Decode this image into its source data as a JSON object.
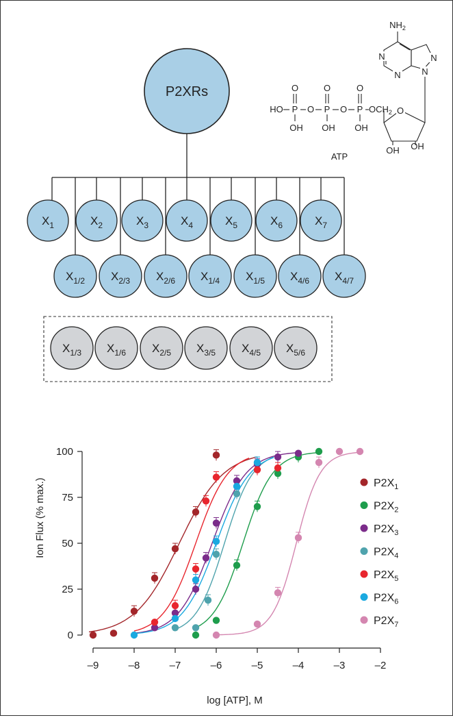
{
  "diagram": {
    "root_label": "P2XRs",
    "homomeric": [
      {
        "base": "X",
        "sub": "1"
      },
      {
        "base": "X",
        "sub": "2"
      },
      {
        "base": "X",
        "sub": "3"
      },
      {
        "base": "X",
        "sub": "4"
      },
      {
        "base": "X",
        "sub": "5"
      },
      {
        "base": "X",
        "sub": "6"
      },
      {
        "base": "X",
        "sub": "7"
      }
    ],
    "heteromeric": [
      {
        "base": "X",
        "sub": "1/2"
      },
      {
        "base": "X",
        "sub": "2/3"
      },
      {
        "base": "X",
        "sub": "2/6"
      },
      {
        "base": "X",
        "sub": "1/4"
      },
      {
        "base": "X",
        "sub": "1/5"
      },
      {
        "base": "X",
        "sub": "4/6"
      },
      {
        "base": "X",
        "sub": "4/7"
      }
    ],
    "putative": [
      {
        "base": "X",
        "sub": "1/3"
      },
      {
        "base": "X",
        "sub": "1/6"
      },
      {
        "base": "X",
        "sub": "2/5"
      },
      {
        "base": "X",
        "sub": "3/5"
      },
      {
        "base": "X",
        "sub": "4/5"
      },
      {
        "base": "X",
        "sub": "5/6"
      }
    ]
  },
  "atp_structure": {
    "caption": "ATP",
    "nh2": "NH",
    "nh2_sub": "2",
    "n": "N",
    "o": "O",
    "p": "P",
    "oh": "OH",
    "ho": "HO",
    "och": "OCH",
    "och_sub": "2"
  },
  "chart_data": {
    "type": "scatter",
    "xlabel": "log [ATP], M",
    "ylabel": "Ion Flux (% max.)",
    "xlim": [
      -9,
      -2
    ],
    "ylim": [
      0,
      100
    ],
    "xticks": [
      -9,
      -8,
      -7,
      -6,
      -5,
      -4,
      -3,
      -2
    ],
    "yticks": [
      0,
      25,
      50,
      75,
      100
    ],
    "xtick_labels": [
      "–9",
      "–8",
      "–7",
      "–6",
      "–5",
      "–4",
      "–3",
      "–2"
    ],
    "ytick_labels": [
      "0",
      "25",
      "50",
      "75",
      "100"
    ],
    "legend_position": "right",
    "series": [
      {
        "name": "P2X",
        "sub": "1",
        "color": "#a3262a",
        "points": [
          [
            -9,
            0
          ],
          [
            -8.5,
            1
          ],
          [
            -8,
            13
          ],
          [
            -7.5,
            31
          ],
          [
            -7,
            47
          ],
          [
            -6.5,
            67
          ],
          [
            -6,
            98
          ]
        ],
        "curve": {
          "ec50": -6.9,
          "hill": 0.8,
          "x0": -9.1,
          "x1": -5
        }
      },
      {
        "name": "P2X",
        "sub": "2",
        "color": "#1e9d4c",
        "points": [
          [
            -6.5,
            0
          ],
          [
            -6,
            8
          ],
          [
            -5.5,
            38
          ],
          [
            -5,
            70
          ],
          [
            -4.5,
            88
          ],
          [
            -4,
            97
          ],
          [
            -3.5,
            100
          ]
        ],
        "curve": {
          "ec50": -5.35,
          "hill": 1.2,
          "x0": -6.5,
          "x1": -3.5
        }
      },
      {
        "name": "P2X",
        "sub": "3",
        "color": "#7b2c8a",
        "points": [
          [
            -7.5,
            4
          ],
          [
            -7,
            12
          ],
          [
            -6.5,
            25
          ],
          [
            -6.25,
            42
          ],
          [
            -6,
            61
          ],
          [
            -5.5,
            84
          ],
          [
            -5,
            93
          ],
          [
            -4.5,
            97
          ],
          [
            -4,
            99
          ]
        ],
        "curve": {
          "ec50": -6.1,
          "hill": 1.05,
          "x0": -8,
          "x1": -4
        }
      },
      {
        "name": "P2X",
        "sub": "4",
        "color": "#4fa3ad",
        "points": [
          [
            -7,
            4
          ],
          [
            -6.5,
            4
          ],
          [
            -6.2,
            19
          ],
          [
            -6,
            44
          ],
          [
            -5.5,
            77
          ],
          [
            -5,
            94
          ]
        ],
        "curve": {
          "ec50": -5.8,
          "hill": 1.25,
          "x0": -7,
          "x1": -4.6
        }
      },
      {
        "name": "P2X",
        "sub": "5",
        "color": "#e8262e",
        "points": [
          [
            -7.5,
            7
          ],
          [
            -7,
            16
          ],
          [
            -6.5,
            36
          ],
          [
            -6.25,
            73
          ],
          [
            -6,
            86
          ],
          [
            -5,
            90
          ],
          [
            -4.5,
            91
          ]
        ],
        "curve": {
          "ec50": -6.5,
          "hill": 1.1,
          "x0": -8,
          "x1": -5.2
        }
      },
      {
        "name": "P2X",
        "sub": "6",
        "color": "#1aa9e0",
        "points": [
          [
            -8,
            0
          ],
          [
            -7,
            9
          ],
          [
            -6.5,
            30
          ],
          [
            -6,
            51
          ],
          [
            -5.5,
            81
          ],
          [
            -5,
            94
          ]
        ],
        "curve": {
          "ec50": -6.0,
          "hill": 1.05,
          "x0": -8,
          "x1": -4.6
        }
      },
      {
        "name": "P2X",
        "sub": "7",
        "color": "#d486b0",
        "points": [
          [
            -6,
            0
          ],
          [
            -5,
            6
          ],
          [
            -4.5,
            23
          ],
          [
            -4,
            53
          ],
          [
            -3.5,
            94
          ],
          [
            -3,
            100
          ],
          [
            -2.5,
            100
          ]
        ],
        "curve": {
          "ec50": -4.05,
          "hill": 1.5,
          "x0": -6,
          "x1": -2.5
        }
      }
    ]
  }
}
